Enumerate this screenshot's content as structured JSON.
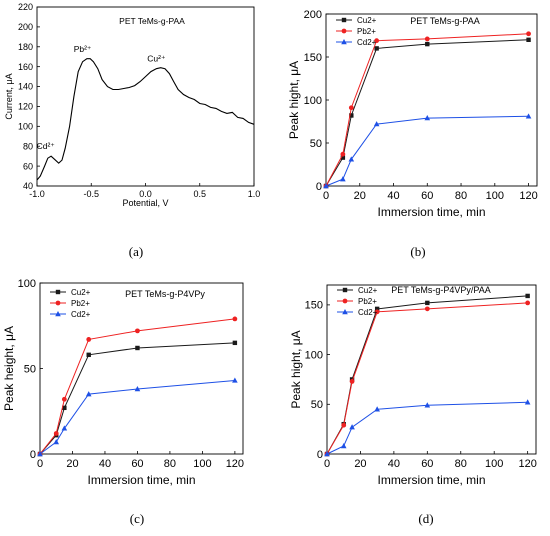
{
  "panels": [
    {
      "caption": "(a)",
      "inner_title": "PET TeMs-g-PAA",
      "chart_data": {
        "type": "line",
        "xlabel": "Potential, V",
        "ylabel": "Current, μA",
        "xlim": [
          -1.0,
          1.0
        ],
        "ylim": [
          40,
          220
        ],
        "xticks": [
          "-1.0",
          "-0.5",
          "0.0",
          "0.5",
          "1.0"
        ],
        "xtick_values": [
          -1.0,
          -0.5,
          0.0,
          0.5,
          1.0
        ],
        "yticks": [
          "40",
          "60",
          "80",
          "100",
          "120",
          "140",
          "160",
          "180",
          "200",
          "220"
        ],
        "ytick_values": [
          40,
          60,
          80,
          100,
          120,
          140,
          160,
          180,
          200,
          220
        ],
        "grid": false,
        "series": [
          {
            "color": "#000000",
            "x": [
              -1.0,
              -0.97,
              -0.93,
              -0.9,
              -0.87,
              -0.84,
              -0.8,
              -0.77,
              -0.74,
              -0.7,
              -0.66,
              -0.62,
              -0.58,
              -0.54,
              -0.51,
              -0.48,
              -0.44,
              -0.4,
              -0.35,
              -0.3,
              -0.25,
              -0.2,
              -0.15,
              -0.1,
              -0.05,
              0.0,
              0.05,
              0.1,
              0.14,
              0.18,
              0.22,
              0.26,
              0.3,
              0.35,
              0.4,
              0.45,
              0.5,
              0.55,
              0.6,
              0.65,
              0.7,
              0.75,
              0.8,
              0.85,
              0.9,
              0.95,
              1.0
            ],
            "y": [
              46,
              50,
              60,
              68,
              70,
              67,
              63,
              66,
              78,
              100,
              130,
              155,
              165,
              168,
              168,
              165,
              158,
              147,
              140,
              137,
              137,
              138,
              139,
              141,
              145,
              150,
              155,
              158,
              159,
              158,
              153,
              145,
              137,
              132,
              129,
              127,
              123,
              122,
              119,
              118,
              115,
              113,
              114,
              109,
              108,
              104,
              102
            ]
          }
        ],
        "annotations": [
          {
            "text": "Cd²⁺",
            "x": -0.92,
            "y": 77
          },
          {
            "text": "Pb²⁺",
            "x": -0.58,
            "y": 175
          },
          {
            "text": "Cu²⁺",
            "x": 0.1,
            "y": 165
          }
        ]
      }
    },
    {
      "caption": "(b)",
      "inner_title": "PET TeMs-g-PAA",
      "chart_data": {
        "type": "line",
        "xlabel": "Immersion time, min",
        "ylabel": "Peak hight, μA",
        "xlim": [
          0,
          125
        ],
        "ylim": [
          0,
          200
        ],
        "xticks": [
          "0",
          "20",
          "40",
          "60",
          "80",
          "100",
          "120"
        ],
        "xtick_values": [
          0,
          20,
          40,
          60,
          80,
          100,
          120
        ],
        "yticks": [
          "0",
          "50",
          "100",
          "150",
          "200"
        ],
        "ytick_values": [
          0,
          50,
          100,
          150,
          200
        ],
        "grid": false,
        "legend": "top-left",
        "x": [
          0,
          10,
          15,
          30,
          60,
          120
        ],
        "series": [
          {
            "name": "Cu2+",
            "color": "#1a1a1a",
            "marker": "square",
            "values": [
              0,
              33,
              82,
              160,
              165,
              170
            ]
          },
          {
            "name": "Pb2+",
            "color": "#ee2222",
            "marker": "circle",
            "values": [
              0,
              37,
              91,
              169,
              171,
              177
            ]
          },
          {
            "name": "Cd2+",
            "color": "#1e50e6",
            "marker": "triangle",
            "values": [
              0,
              8,
              31,
              72,
              79,
              81
            ]
          }
        ]
      }
    },
    {
      "caption": "(c)",
      "inner_title": "PET TeMs-g-P4VPy",
      "chart_data": {
        "type": "line",
        "xlabel": "Immersion time, min",
        "ylabel": "Peak height, μA",
        "xlim": [
          0,
          125
        ],
        "ylim": [
          0,
          100
        ],
        "xticks": [
          "0",
          "20",
          "40",
          "60",
          "80",
          "100",
          "120"
        ],
        "xtick_values": [
          0,
          20,
          40,
          60,
          80,
          100,
          120
        ],
        "yticks": [
          "0",
          "50",
          "100"
        ],
        "ytick_values": [
          0,
          50,
          100
        ],
        "grid": false,
        "legend": "top-left",
        "x": [
          0,
          10,
          15,
          30,
          60,
          120
        ],
        "series": [
          {
            "name": "Cu2+",
            "color": "#1a1a1a",
            "marker": "square",
            "values": [
              0,
              11,
              27,
              58,
              62,
              65
            ]
          },
          {
            "name": "Pb2+",
            "color": "#ee2222",
            "marker": "circle",
            "values": [
              0,
              12,
              32,
              67,
              72,
              79
            ]
          },
          {
            "name": "Cd2+",
            "color": "#1e50e6",
            "marker": "triangle",
            "values": [
              0,
              7,
              15,
              35,
              38,
              43
            ]
          }
        ]
      }
    },
    {
      "caption": "(d)",
      "inner_title": "PET TeMs-g-P4VPy/PAA",
      "chart_data": {
        "type": "line",
        "xlabel": "Immersion time, min",
        "ylabel": "Peak hight, μA",
        "xlim": [
          0,
          125
        ],
        "ylim": [
          0,
          170
        ],
        "xticks": [
          "0",
          "20",
          "40",
          "60",
          "80",
          "100",
          "120"
        ],
        "xtick_values": [
          0,
          20,
          40,
          60,
          80,
          100,
          120
        ],
        "yticks": [
          "0",
          "50",
          "100",
          "150"
        ],
        "ytick_values": [
          0,
          50,
          100,
          150
        ],
        "grid": false,
        "legend": "top-left",
        "x": [
          0,
          10,
          15,
          30,
          60,
          120
        ],
        "series": [
          {
            "name": "Cu2+",
            "color": "#1a1a1a",
            "marker": "square",
            "values": [
              0,
              30,
              75,
              146,
              152,
              159
            ]
          },
          {
            "name": "Pb2+",
            "color": "#ee2222",
            "marker": "circle",
            "values": [
              0,
              29,
              73,
              143,
              146,
              152
            ]
          },
          {
            "name": "Cd2+",
            "color": "#1e50e6",
            "marker": "triangle",
            "values": [
              0,
              8,
              27,
              45,
              49,
              52
            ]
          }
        ]
      }
    }
  ]
}
